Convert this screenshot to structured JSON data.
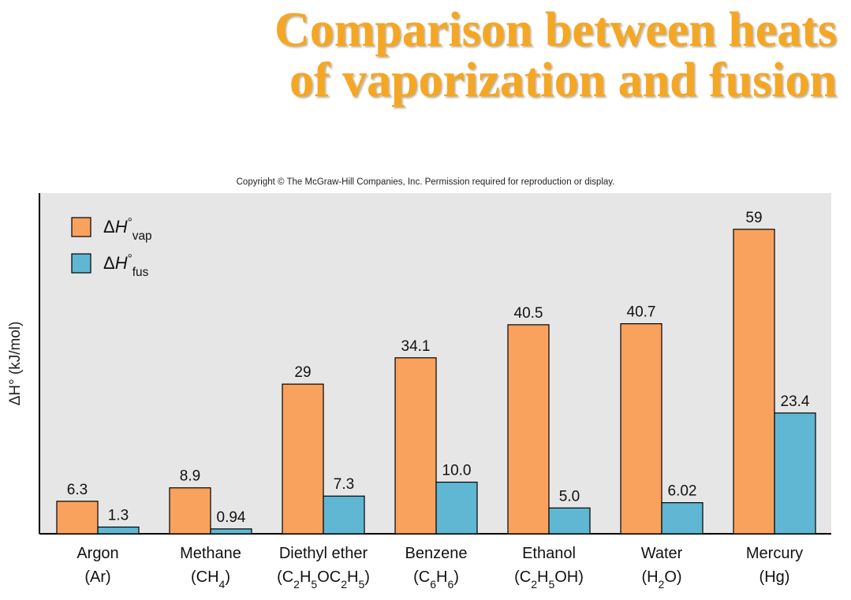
{
  "title_line1": "Comparison between heats",
  "title_line2": "of vaporization and fusion",
  "copyright": "Copyright © The McGraw-Hill Companies, Inc. Permission required for reproduction or display.",
  "colors": {
    "title": "#f5a623",
    "vap": "#f9a25e",
    "fus": "#5fb7d4",
    "plot_bg": "#e6e6e6"
  },
  "chart_data": {
    "type": "bar",
    "ylabel": "ΔH° (kJ/mol)",
    "ylim": [
      0,
      66
    ],
    "grid": false,
    "legend_position": "top-left",
    "categories": [
      {
        "name": "Argon",
        "formula": [
          [
            "(Ar)",
            ""
          ]
        ]
      },
      {
        "name": "Methane",
        "formula": [
          [
            "(CH",
            ""
          ],
          [
            "4",
            "sub"
          ],
          [
            ")",
            ""
          ]
        ]
      },
      {
        "name": "Diethyl ether",
        "formula": [
          [
            "(C",
            ""
          ],
          [
            "2",
            "sub"
          ],
          [
            "H",
            ""
          ],
          [
            "5",
            "sub"
          ],
          [
            "OC",
            ""
          ],
          [
            "2",
            "sub"
          ],
          [
            "H",
            ""
          ],
          [
            "5",
            "sub"
          ],
          [
            ")",
            ""
          ]
        ]
      },
      {
        "name": "Benzene",
        "formula": [
          [
            "(C",
            ""
          ],
          [
            "6",
            "sub"
          ],
          [
            "H",
            ""
          ],
          [
            "6",
            "sub"
          ],
          [
            ")",
            ""
          ]
        ]
      },
      {
        "name": "Ethanol",
        "formula": [
          [
            "(C",
            ""
          ],
          [
            "2",
            "sub"
          ],
          [
            "H",
            ""
          ],
          [
            "5",
            "sub"
          ],
          [
            "OH)",
            ""
          ]
        ]
      },
      {
        "name": "Water",
        "formula": [
          [
            "(H",
            ""
          ],
          [
            "2",
            "sub"
          ],
          [
            "O)",
            ""
          ]
        ]
      },
      {
        "name": "Mercury",
        "formula": [
          [
            "(Hg)",
            ""
          ]
        ]
      }
    ],
    "series": [
      {
        "name": "ΔH°vap",
        "legend": [
          [
            "Δ",
            ""
          ],
          [
            "H",
            "italic"
          ],
          [
            "°",
            "sup"
          ],
          [
            "vap",
            "sub"
          ]
        ],
        "values": [
          6.3,
          8.9,
          29,
          34.1,
          40.5,
          40.7,
          59
        ],
        "labels": [
          "6.3",
          "8.9",
          "29",
          "34.1",
          "40.5",
          "40.7",
          "59"
        ]
      },
      {
        "name": "ΔH°fus",
        "legend": [
          [
            "Δ",
            ""
          ],
          [
            "H",
            "italic"
          ],
          [
            "°",
            "sup"
          ],
          [
            "fus",
            "sub"
          ]
        ],
        "values": [
          1.3,
          0.94,
          7.3,
          10.0,
          5.0,
          6.02,
          23.4
        ],
        "labels": [
          "1.3",
          "0.94",
          "7.3",
          "10.0",
          "5.0",
          "6.02",
          "23.4"
        ]
      }
    ]
  }
}
